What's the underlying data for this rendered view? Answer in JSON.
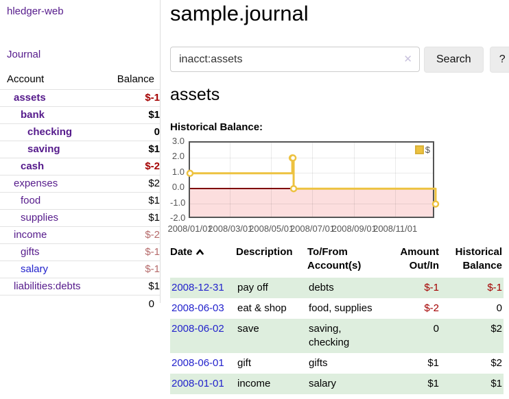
{
  "sidebar": {
    "app_title": "hledger-web",
    "journal_link": "Journal",
    "accounts": {
      "headers": {
        "account": "Account",
        "balance": "Balance"
      },
      "rows": [
        {
          "name": "assets",
          "balance": "$-1",
          "level": 1,
          "matched": true,
          "negative": true,
          "unvisited": false
        },
        {
          "name": "bank",
          "balance": "$1",
          "level": 2,
          "matched": true,
          "negative": false,
          "unvisited": false
        },
        {
          "name": "checking",
          "balance": "0",
          "level": 3,
          "matched": true,
          "negative": false,
          "unvisited": false
        },
        {
          "name": "saving",
          "balance": "$1",
          "level": 3,
          "matched": true,
          "negative": false,
          "unvisited": false
        },
        {
          "name": "cash",
          "balance": "$-2",
          "level": 2,
          "matched": true,
          "negative": true,
          "unvisited": false
        },
        {
          "name": "expenses",
          "balance": "$2",
          "level": 1,
          "matched": false,
          "negative": false,
          "unvisited": false
        },
        {
          "name": "food",
          "balance": "$1",
          "level": 2,
          "matched": false,
          "negative": false,
          "unvisited": false
        },
        {
          "name": "supplies",
          "balance": "$1",
          "level": 2,
          "matched": false,
          "negative": false,
          "unvisited": false
        },
        {
          "name": "income",
          "balance": "$-2",
          "level": 1,
          "matched": false,
          "negative": true,
          "unvisited": false
        },
        {
          "name": "gifts",
          "balance": "$-1",
          "level": 2,
          "matched": false,
          "negative": true,
          "unvisited": false
        },
        {
          "name": "salary",
          "balance": "$-1",
          "level": 2,
          "matched": false,
          "negative": true,
          "unvisited": true
        },
        {
          "name": "liabilities:debts",
          "balance": "$1",
          "level": 1,
          "matched": false,
          "negative": false,
          "unvisited": false
        }
      ],
      "total": "0"
    }
  },
  "main": {
    "title": "sample.journal",
    "search": {
      "value": "inacct:assets",
      "clear_icon": "✕",
      "search_label": "Search",
      "help_label": "?"
    },
    "account_heading": "assets",
    "chart_label": "Historical Balance:"
  },
  "chart_data": {
    "type": "line",
    "step": true,
    "title": "Historical Balance",
    "legend": "$",
    "legend_position": "top-right",
    "series": [
      {
        "name": "$",
        "color": "#edc240",
        "points": [
          [
            "2008-01-01",
            1
          ],
          [
            "2008-06-01",
            2
          ],
          [
            "2008-06-02",
            2
          ],
          [
            "2008-06-03",
            0
          ],
          [
            "2008-12-31",
            -1
          ]
        ]
      }
    ],
    "xrange": [
      "2008-01-01",
      "2008-12-31"
    ],
    "ylim": [
      -2,
      3
    ],
    "yticks": [
      3.0,
      2.0,
      1.0,
      0.0,
      -1.0,
      -2.0
    ],
    "xticks": [
      "2008/01/01",
      "2008/03/01",
      "2008/05/01",
      "2008/07/01",
      "2008/09/01",
      "2008/11/01"
    ],
    "grid": true,
    "negative_region_color": "#fcdede",
    "zero_line_color": "#7e0000",
    "border_color": "#545454"
  },
  "register": {
    "headers": {
      "date": "Date",
      "description": "Description",
      "accounts": "To/From Account(s)",
      "amount": "Amount Out/In",
      "balance": "Historical Balance"
    },
    "rows": [
      {
        "date": "2008-12-31",
        "description": "pay off",
        "accounts": "debts",
        "amount": "$-1",
        "amount_negative": true,
        "balance": "$-1",
        "balance_negative": true
      },
      {
        "date": "2008-06-03",
        "description": "eat & shop",
        "accounts": "food, supplies",
        "amount": "$-2",
        "amount_negative": true,
        "balance": "0",
        "balance_negative": false
      },
      {
        "date": "2008-06-02",
        "description": "save",
        "accounts": "saving, checking",
        "amount": "0",
        "amount_negative": false,
        "balance": "$2",
        "balance_negative": false
      },
      {
        "date": "2008-06-01",
        "description": "gift",
        "accounts": "gifts",
        "amount": "$1",
        "amount_negative": false,
        "balance": "$2",
        "balance_negative": false
      },
      {
        "date": "2008-01-01",
        "description": "income",
        "accounts": "salary",
        "amount": "$1",
        "amount_negative": false,
        "balance": "$1",
        "balance_negative": false
      }
    ]
  },
  "colors": {
    "visited_link": "#551a8b",
    "unvisited_link": "#2222cc",
    "negative_bold": "#a40000",
    "negative_muted": "#b56a6a",
    "row_stripe_green": "#deeede",
    "sidebar_border": "#dddddd",
    "button_bg": "#ececec"
  }
}
